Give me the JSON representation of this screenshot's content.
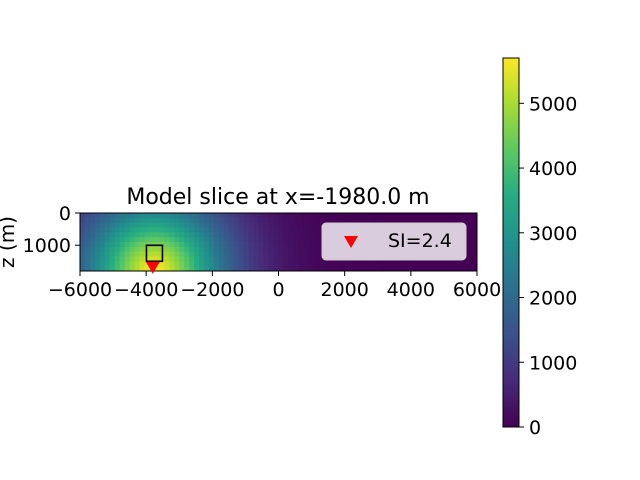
{
  "chart_data": {
    "type": "heatmap",
    "title": "Model slice at x=-1980.0 m",
    "ylabel": "z (m)",
    "xlabel": "",
    "xlim": [
      -6000,
      6000
    ],
    "ylim": [
      1800,
      0
    ],
    "x_ticks": [
      -6000,
      -4000,
      -2000,
      0,
      2000,
      4000,
      6000
    ],
    "x_tick_labels": [
      "−6000",
      "−4000",
      "−2000",
      "0",
      "2000",
      "4000",
      "6000"
    ],
    "y_ticks": [
      0,
      1000
    ],
    "y_tick_labels": [
      "0",
      "1000"
    ],
    "colormap": "viridis",
    "color_range": [
      0,
      5700
    ],
    "colorbar_ticks": [
      0,
      1000,
      2000,
      3000,
      4000,
      5000
    ],
    "colorbar_tick_labels": [
      "0",
      "1000",
      "2000",
      "3000",
      "4000",
      "5000"
    ],
    "source_center": [
      -3750,
      1800
    ],
    "source_peak": 5700,
    "source_falloff": 2100,
    "marker_square": {
      "x": -3750,
      "z": 1250,
      "color": "#000000"
    },
    "marker_triangle": {
      "x": -3800,
      "z": 1700,
      "color": "#ff0000"
    },
    "legend": {
      "entries": [
        {
          "label": "SI=2.4",
          "marker": "triangle-down",
          "color": "#ff0000"
        }
      ],
      "position": "upper-right"
    },
    "grid": false
  }
}
